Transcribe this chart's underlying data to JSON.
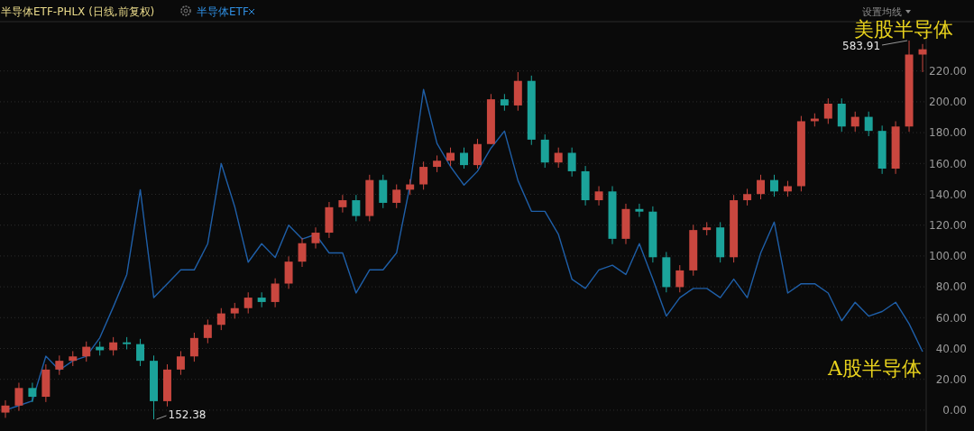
{
  "chart_data": {
    "type": "candlestick",
    "title": "半导体ETF-PHLX (日线,前复权)",
    "categories": [
      null,
      null,
      null,
      null,
      null,
      null,
      null,
      null,
      null,
      null,
      null,
      null,
      null,
      null,
      null,
      null,
      null,
      null,
      null,
      null,
      null,
      null,
      null,
      null,
      null,
      null,
      null,
      null,
      null,
      null,
      null,
      null,
      null,
      null,
      null,
      null,
      null,
      null,
      null,
      null,
      null,
      null,
      null,
      null,
      null,
      null,
      null,
      null,
      null,
      null,
      null,
      null,
      null,
      null,
      null,
      null,
      null,
      null,
      null,
      null,
      null,
      null,
      null,
      null,
      null,
      null,
      null,
      null,
      null
    ],
    "series": [
      {
        "type": "line",
        "name": "半导体ETF",
        "color": "#1f5fa8",
        "axis": "y",
        "values": [
          0,
          3,
          6,
          35,
          26,
          32,
          35,
          47,
          67,
          88,
          143,
          73,
          82,
          91,
          91,
          108,
          160,
          132,
          96,
          108,
          99,
          120,
          111,
          114,
          102,
          102,
          76,
          91,
          91,
          102,
          146,
          208,
          173,
          158,
          146,
          155,
          170,
          181,
          149,
          129,
          129,
          114,
          85,
          79,
          91,
          94,
          88,
          108,
          85,
          61,
          73,
          79,
          79,
          73,
          85,
          73,
          102,
          122,
          76,
          82,
          82,
          76,
          58,
          70,
          61,
          64,
          70,
          56,
          38
        ]
      },
      {
        "type": "candlestick",
        "axis": "y2",
        "ohlc": [
          [
            160,
            174,
            154,
            168
          ],
          [
            168,
            194,
            162,
            188
          ],
          [
            188,
            194,
            172,
            178
          ],
          [
            178,
            215,
            172,
            209
          ],
          [
            209,
            225,
            203,
            219
          ],
          [
            219,
            230,
            213,
            224
          ],
          [
            224,
            241,
            218,
            235
          ],
          [
            235,
            241,
            225,
            231
          ],
          [
            231,
            246,
            225,
            240
          ],
          [
            240,
            246,
            232,
            238
          ],
          [
            238,
            244,
            213,
            219
          ],
          [
            219,
            225,
            152.38,
            173
          ],
          [
            173,
            215,
            167,
            209
          ],
          [
            209,
            230,
            203,
            224
          ],
          [
            224,
            251,
            218,
            245
          ],
          [
            245,
            266,
            239,
            260
          ],
          [
            260,
            279,
            254,
            273
          ],
          [
            273,
            285,
            267,
            279
          ],
          [
            279,
            297,
            273,
            291
          ],
          [
            291,
            297,
            280,
            286
          ],
          [
            286,
            313,
            280,
            307
          ],
          [
            307,
            338,
            301,
            332
          ],
          [
            332,
            359,
            326,
            353
          ],
          [
            353,
            371,
            347,
            365
          ],
          [
            365,
            400,
            359,
            394
          ],
          [
            394,
            408,
            388,
            402
          ],
          [
            402,
            408,
            378,
            384
          ],
          [
            384,
            431,
            378,
            425
          ],
          [
            425,
            431,
            393,
            399
          ],
          [
            399,
            420,
            393,
            414
          ],
          [
            414,
            426,
            408,
            420
          ],
          [
            420,
            446,
            414,
            440
          ],
          [
            440,
            453,
            434,
            447
          ],
          [
            447,
            462,
            441,
            456
          ],
          [
            456,
            462,
            438,
            442
          ],
          [
            442,
            472,
            438,
            466
          ],
          [
            466,
            523,
            466,
            517
          ],
          [
            517,
            523,
            504,
            510
          ],
          [
            510,
            548,
            504,
            538
          ],
          [
            538,
            544,
            465,
            471
          ],
          [
            471,
            477,
            439,
            445
          ],
          [
            445,
            462,
            439,
            456
          ],
          [
            456,
            462,
            429,
            435
          ],
          [
            435,
            441,
            396,
            402
          ],
          [
            402,
            418,
            396,
            412
          ],
          [
            412,
            418,
            352,
            358
          ],
          [
            358,
            398,
            352,
            392
          ],
          [
            392,
            398,
            383,
            389
          ],
          [
            389,
            395,
            331,
            337
          ],
          [
            337,
            343,
            297,
            303
          ],
          [
            303,
            328,
            297,
            322
          ],
          [
            322,
            374,
            316,
            368
          ],
          [
            368,
            377,
            362,
            371
          ],
          [
            371,
            377,
            331,
            337
          ],
          [
            337,
            408,
            331,
            402
          ],
          [
            402,
            415,
            396,
            409
          ],
          [
            409,
            431,
            403,
            425
          ],
          [
            425,
            431,
            406,
            412
          ],
          [
            412,
            424,
            406,
            418
          ],
          [
            418,
            498,
            412,
            492
          ],
          [
            492,
            501,
            486,
            495
          ],
          [
            495,
            518,
            489,
            512
          ],
          [
            512,
            518,
            480,
            486
          ],
          [
            486,
            503,
            480,
            497
          ],
          [
            497,
            503,
            475,
            481
          ],
          [
            481,
            487,
            432,
            438
          ],
          [
            438,
            492,
            432,
            486
          ],
          [
            486,
            583.91,
            480,
            568
          ],
          [
            568,
            580,
            548,
            574
          ]
        ],
        "colors": [
          "#c9473f",
          "#c9473f",
          "#1ba39a",
          "#c9473f",
          "#c9473f",
          "#c9473f",
          "#c9473f",
          "#1ba39a",
          "#c9473f",
          "#1ba39a",
          "#1ba39a",
          "#1ba39a",
          "#c9473f",
          "#c9473f",
          "#c9473f",
          "#c9473f",
          "#c9473f",
          "#c9473f",
          "#c9473f",
          "#1ba39a",
          "#c9473f",
          "#c9473f",
          "#c9473f",
          "#c9473f",
          "#c9473f",
          "#c9473f",
          "#1ba39a",
          "#c9473f",
          "#1ba39a",
          "#c9473f",
          "#c9473f",
          "#c9473f",
          "#c9473f",
          "#c9473f",
          "#1ba39a",
          "#c9473f",
          "#c9473f",
          "#1ba39a",
          "#c9473f",
          "#1ba39a",
          "#1ba39a",
          "#c9473f",
          "#1ba39a",
          "#1ba39a",
          "#c9473f",
          "#1ba39a",
          "#c9473f",
          "#1ba39a",
          "#1ba39a",
          "#1ba39a",
          "#c9473f",
          "#c9473f",
          "#c9473f",
          "#1ba39a",
          "#c9473f",
          "#c9473f",
          "#c9473f",
          "#1ba39a",
          "#c9473f",
          "#c9473f",
          "#c9473f",
          "#c9473f",
          "#1ba39a",
          "#c9473f",
          "#1ba39a",
          "#1ba39a",
          "#c9473f",
          "#c9473f",
          "#c9473f"
        ]
      }
    ],
    "ylim": [
      -13.5,
      252
    ],
    "yticks": [
      {
        "value": 0,
        "label": "0.00"
      },
      {
        "value": 20,
        "label": "20.00"
      },
      {
        "value": 40,
        "label": "40.00"
      },
      {
        "value": 60,
        "label": "60.00"
      },
      {
        "value": 80,
        "label": "80.00"
      },
      {
        "value": 100,
        "label": "100.00"
      },
      {
        "value": 120,
        "label": "120.00"
      },
      {
        "value": 140,
        "label": "140.00"
      },
      {
        "value": 160,
        "label": "160.00"
      },
      {
        "value": 180,
        "label": "180.00"
      },
      {
        "value": 200,
        "label": "200.00"
      },
      {
        "value": 220,
        "label": "220.00"
      }
    ],
    "y2lim": [
      139,
      605.5
    ],
    "tick_labels": "y",
    "grid": "y",
    "legend": "top left",
    "marker": "none",
    "annotations": [
      "设置均线",
      "美股半导体",
      "583.91",
      "152.38",
      "A股半导体"
    ]
  }
}
